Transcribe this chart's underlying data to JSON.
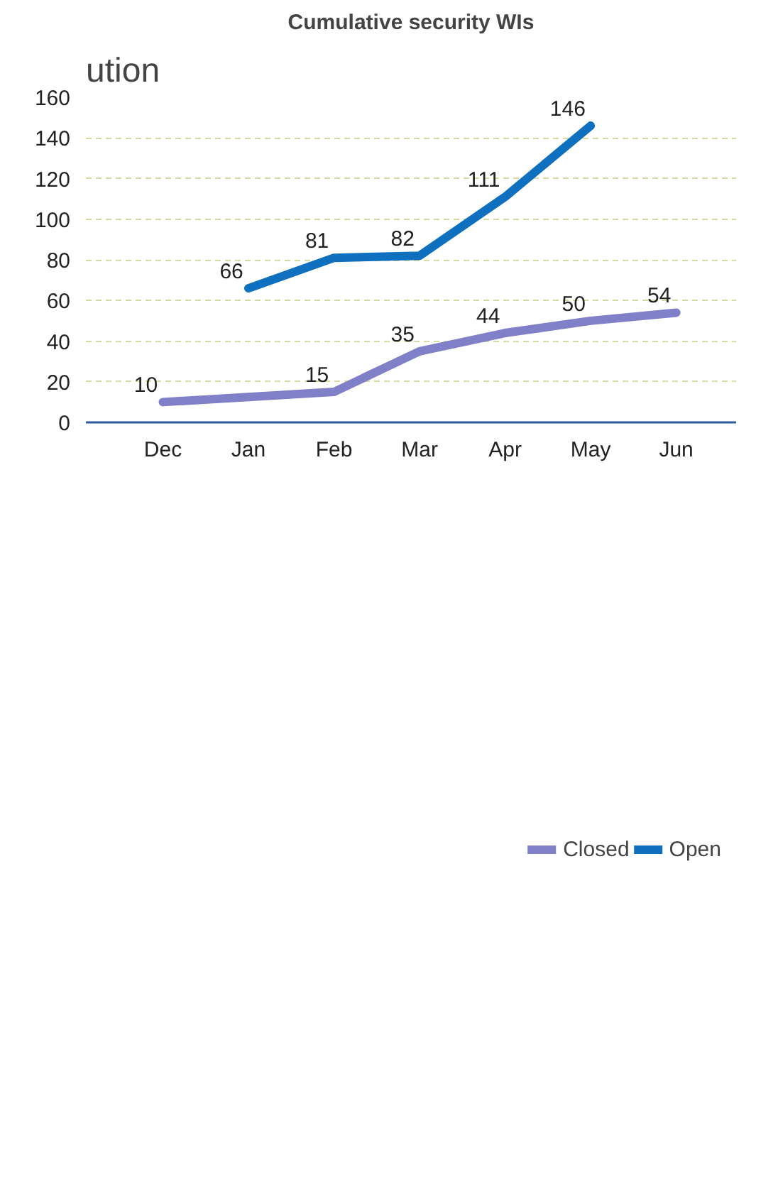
{
  "chart_data": {
    "type": "line",
    "title": "Cumulative security WIs",
    "annotations": [
      "ution"
    ],
    "categories": [
      "Dec",
      "Jan",
      "Feb",
      "Mar",
      "Apr",
      "May",
      "Jun"
    ],
    "series": [
      {
        "name": "Closed",
        "color": "#8080c8",
        "values": [
          10,
          12.5,
          15,
          35,
          44,
          50,
          54
        ],
        "value_labels": [
          "10",
          null,
          "15",
          "35",
          "44",
          "50",
          "54"
        ]
      },
      {
        "name": "Open",
        "color": "#1070c0",
        "values": [
          null,
          66,
          81,
          82,
          111,
          146,
          null
        ],
        "value_labels": [
          null,
          "66",
          "81",
          "82",
          "111",
          "146",
          null
        ]
      }
    ],
    "ylim": [
      0,
      160
    ],
    "yticks": [
      0,
      20,
      40,
      60,
      80,
      100,
      120,
      140,
      160
    ],
    "grid": "y",
    "legend": "bottom",
    "marker": "none",
    "line_style": "solid"
  }
}
